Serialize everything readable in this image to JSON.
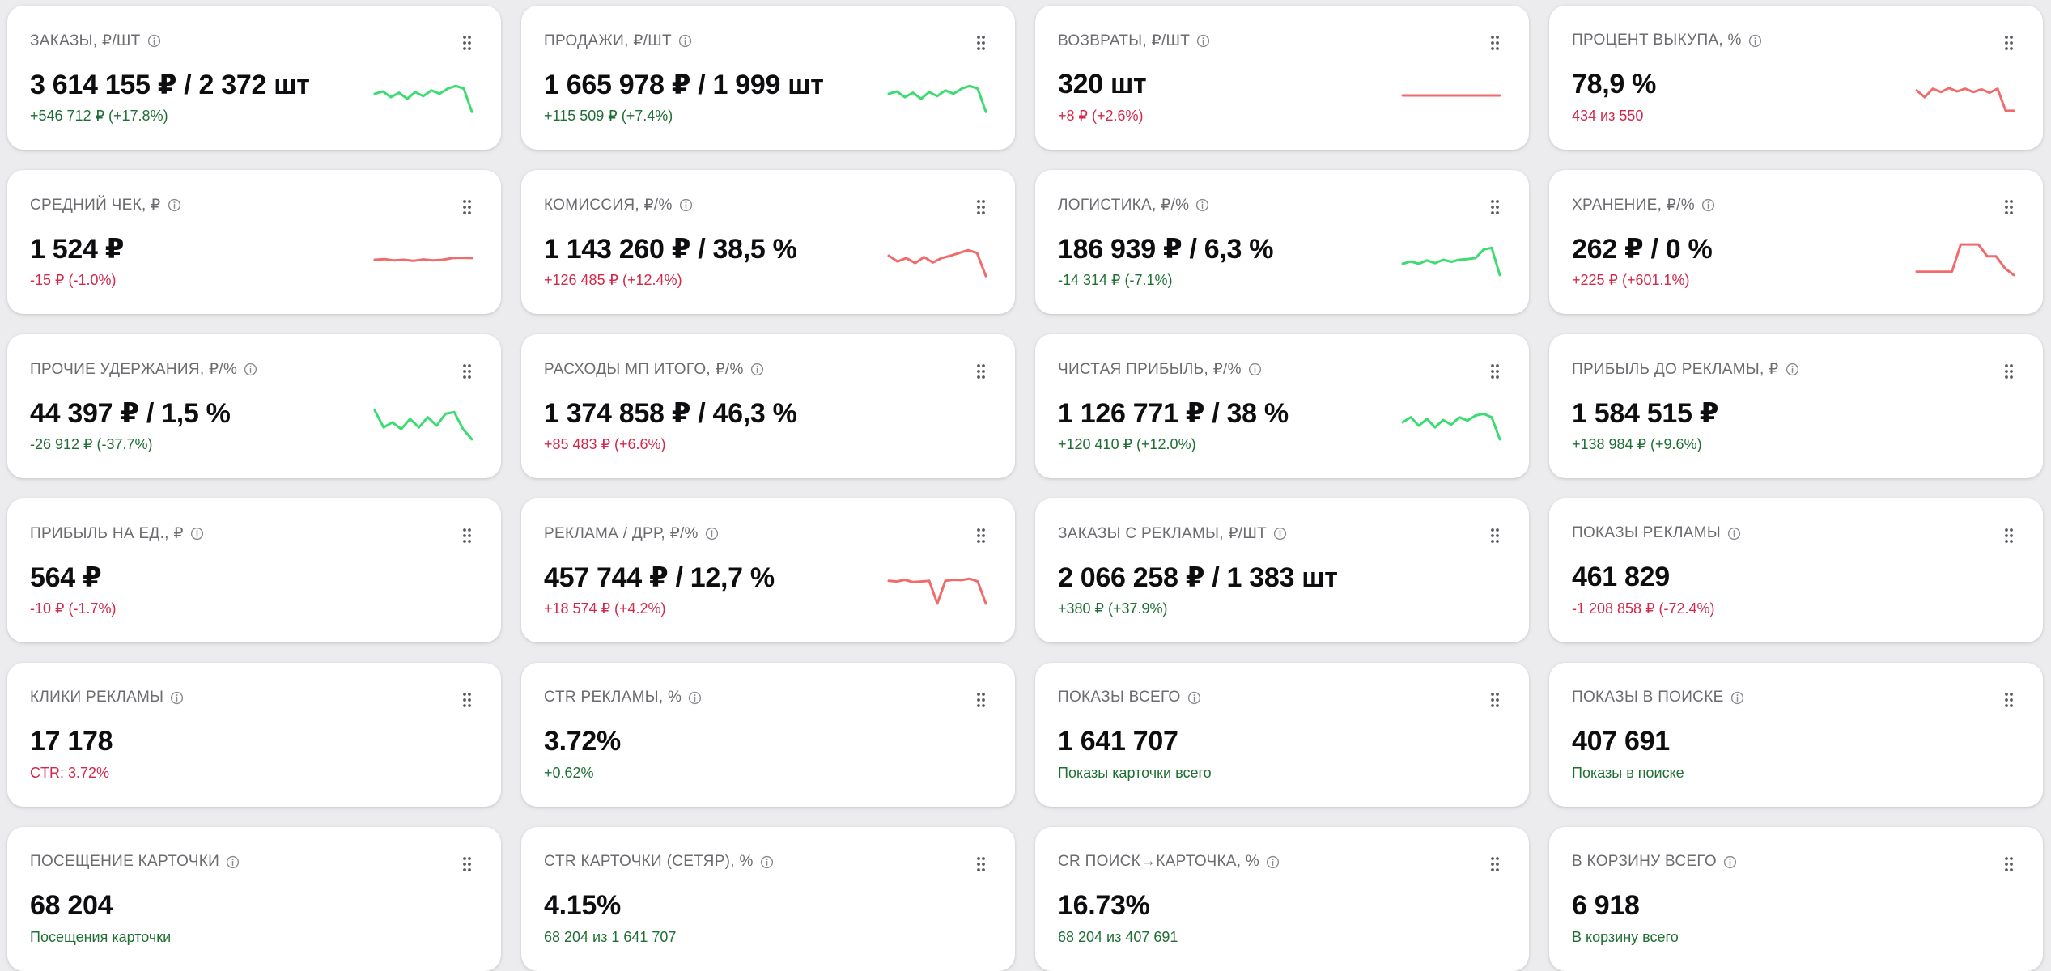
{
  "colors": {
    "positive": "#1f6f34",
    "negative": "#d3284a",
    "spark_green": "#3ddc72",
    "spark_red": "#f06b6b"
  },
  "icons": {
    "info": "info-circle-icon",
    "drag": "drag-handle-icon"
  },
  "cards": [
    {
      "title": "ЗАКАЗЫ, ₽/ШТ",
      "value": "3 614 155 ₽ / 2 372 шт",
      "delta": "+546 712 ₽ (+17.8%)",
      "tone": "positive",
      "info": true,
      "spark": {
        "color": "green",
        "points": [
          0.45,
          0.38,
          0.55,
          0.42,
          0.6,
          0.4,
          0.52,
          0.35,
          0.45,
          0.3,
          0.22,
          0.3,
          0.98
        ]
      }
    },
    {
      "title": "ПРОДАЖИ, ₽/ШТ",
      "value": "1 665 978 ₽ / 1 999 шт",
      "delta": "+115 509 ₽ (+7.4%)",
      "tone": "positive",
      "info": true,
      "spark": {
        "color": "green",
        "points": [
          0.45,
          0.38,
          0.55,
          0.42,
          0.6,
          0.4,
          0.52,
          0.35,
          0.45,
          0.3,
          0.22,
          0.3,
          0.98
        ]
      }
    },
    {
      "title": "ВОЗВРАТЫ, ₽/ШТ",
      "value": "320 шт",
      "delta": "+8 ₽ (+2.6%)",
      "tone": "negative",
      "info": true,
      "spark": {
        "color": "red",
        "points": [
          0.5,
          0.5
        ]
      }
    },
    {
      "title": "ПРОЦЕНТ ВЫКУПА, %",
      "value": "78,9 %",
      "delta": "434 из 550",
      "tone": "negative",
      "info": true,
      "spark": {
        "color": "red",
        "points": [
          0.35,
          0.55,
          0.3,
          0.4,
          0.28,
          0.38,
          0.3,
          0.4,
          0.32,
          0.42,
          0.3,
          0.95,
          0.95
        ]
      }
    },
    {
      "title": "СРЕДНИЙ ЧЕК, ₽",
      "value": "1 524 ₽",
      "delta": "-15 ₽ (-1.0%)",
      "tone": "negative",
      "info": true,
      "spark": {
        "color": "red",
        "points": [
          0.5,
          0.48,
          0.52,
          0.5,
          0.53,
          0.49,
          0.52,
          0.5,
          0.45,
          0.44,
          0.45
        ]
      }
    },
    {
      "title": "КОМИССИЯ, ₽/%",
      "value": "1 143 260 ₽ / 38,5 %",
      "delta": "+126 485 ₽ (+12.4%)",
      "tone": "negative",
      "info": true,
      "spark": {
        "color": "red",
        "points": [
          0.38,
          0.55,
          0.45,
          0.6,
          0.42,
          0.58,
          0.45,
          0.38,
          0.3,
          0.22,
          0.3,
          0.98
        ]
      }
    },
    {
      "title": "ЛОГИСТИКА, ₽/%",
      "value": "186 939 ₽ / 6,3 %",
      "delta": "-14 314 ₽ (-7.1%)",
      "tone": "positive",
      "info": true,
      "spark": {
        "color": "green",
        "points": [
          0.62,
          0.55,
          0.62,
          0.52,
          0.6,
          0.5,
          0.56,
          0.5,
          0.48,
          0.45,
          0.2,
          0.15,
          0.95
        ]
      }
    },
    {
      "title": "ХРАНЕНИЕ, ₽/%",
      "value": "262 ₽ / 0 %",
      "delta": "+225 ₽ (+601.1%)",
      "tone": "negative",
      "info": true,
      "spark": {
        "color": "red",
        "points": [
          0.85,
          0.85,
          0.85,
          0.85,
          0.85,
          0.05,
          0.05,
          0.05,
          0.4,
          0.4,
          0.75,
          0.95
        ]
      }
    },
    {
      "title": "ПРОЧИЕ УДЕРЖАНИЯ, ₽/%",
      "value": "44 397 ₽ / 1,5 %",
      "delta": "-26 912 ₽ (-37.7%)",
      "tone": "positive",
      "info": true,
      "spark": {
        "color": "green",
        "points": [
          0.1,
          0.6,
          0.45,
          0.65,
          0.35,
          0.6,
          0.3,
          0.55,
          0.2,
          0.15,
          0.65,
          0.95
        ]
      }
    },
    {
      "title": "РАСХОДЫ МП ИТОГО, ₽/%",
      "value": "1 374 858 ₽ / 46,3 %",
      "delta": "+85 483 ₽ (+6.6%)",
      "tone": "negative",
      "info": true,
      "spark": null
    },
    {
      "title": "ЧИСТАЯ ПРИБЫЛЬ, ₽/%",
      "value": "1 126 771 ₽ / 38 %",
      "delta": "+120 410 ₽ (+12.0%)",
      "tone": "positive",
      "info": true,
      "spark": {
        "color": "green",
        "points": [
          0.45,
          0.3,
          0.55,
          0.35,
          0.6,
          0.38,
          0.52,
          0.3,
          0.4,
          0.25,
          0.2,
          0.3,
          0.95
        ]
      }
    },
    {
      "title": "ПРИБЫЛЬ ДО РЕКЛАМЫ, ₽",
      "value": "1 584 515 ₽",
      "delta": "+138 984 ₽ (+9.6%)",
      "tone": "positive",
      "info": true,
      "spark": null
    },
    {
      "title": "ПРИБЫЛЬ НА ЕД., ₽",
      "value": "564 ₽",
      "delta": "-10 ₽ (-1.7%)",
      "tone": "negative",
      "info": true,
      "spark": null
    },
    {
      "title": "РЕКЛАМА / ДРР, ₽/%",
      "value": "457 744 ₽ / 12,7 %",
      "delta": "+18 574 ₽ (+4.2%)",
      "tone": "negative",
      "info": true,
      "spark": {
        "color": "red",
        "points": [
          0.28,
          0.3,
          0.25,
          0.32,
          0.3,
          0.28,
          0.95,
          0.28,
          0.25,
          0.26,
          0.22,
          0.3,
          0.95
        ]
      }
    },
    {
      "title": "ЗАКАЗЫ С РЕКЛАМЫ, ₽/ШТ",
      "value": "2 066 258 ₽ / 1 383 шт",
      "delta": "+380 ₽ (+37.9%)",
      "tone": "positive",
      "info": true,
      "spark": null
    },
    {
      "title": "ПОКАЗЫ РЕКЛАМЫ",
      "value": "461 829",
      "delta": "-1 208 858 ₽ (-72.4%)",
      "tone": "negative",
      "info": true,
      "spark": null
    },
    {
      "title": "КЛИКИ РЕКЛАМЫ",
      "value": "17 178",
      "delta": "CTR: 3.72%",
      "tone": "negative",
      "info": true,
      "spark": null
    },
    {
      "title": "CTR РЕКЛАМЫ, %",
      "value": "3.72%",
      "delta": "+0.62%",
      "tone": "positive",
      "info": true,
      "spark": null
    },
    {
      "title": "ПОКАЗЫ ВСЕГО",
      "value": "1 641 707",
      "delta": "Показы карточки всего",
      "tone": "positive",
      "info": true,
      "spark": null
    },
    {
      "title": "ПОКАЗЫ В ПОИСКЕ",
      "value": "407 691",
      "delta": "Показы в поиске",
      "tone": "positive",
      "info": true,
      "spark": null
    },
    {
      "title": "ПОСЕЩЕНИЕ КАРТОЧКИ",
      "value": "68 204",
      "delta": "Посещения карточки",
      "tone": "positive",
      "info": true,
      "spark": null
    },
    {
      "title": "CTR КАРТОЧКИ (СЕТЯР), %",
      "value": "4.15%",
      "delta": "68 204 из 1 641 707",
      "tone": "positive",
      "info": true,
      "spark": null
    },
    {
      "title": "CR ПОИСК→КАРТОЧКА, %",
      "value": "16.73%",
      "delta": "68 204 из 407 691",
      "tone": "positive",
      "info": true,
      "spark": null
    },
    {
      "title": "В КОРЗИНУ ВСЕГО",
      "value": "6 918",
      "delta": "В корзину всего",
      "tone": "positive",
      "info": true,
      "spark": null
    }
  ]
}
